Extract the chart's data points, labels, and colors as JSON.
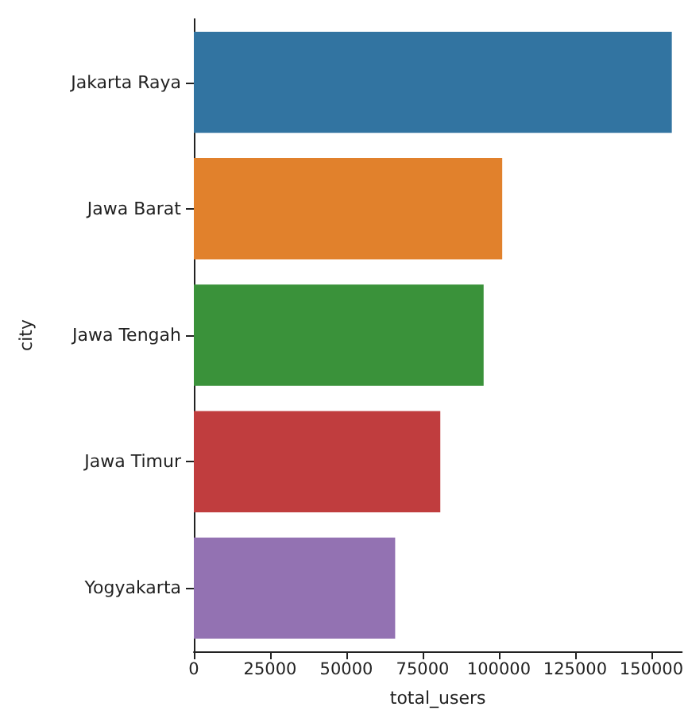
{
  "chart_data": {
    "type": "bar",
    "orientation": "horizontal",
    "xlabel": "total_users",
    "ylabel": "city",
    "categories": [
      "Jakarta Raya",
      "Jawa Barat",
      "Jawa Tengah",
      "Jawa Timur",
      "Yogyakarta"
    ],
    "values": [
      156700,
      101100,
      95000,
      80800,
      66000
    ],
    "colors": [
      "#3274a1",
      "#e1812c",
      "#3a923a",
      "#c03d3e",
      "#9372b2"
    ],
    "xlim": [
      0,
      160000
    ],
    "xticks": [
      0,
      25000,
      50000,
      75000,
      100000,
      125000,
      150000
    ],
    "grid": false
  }
}
